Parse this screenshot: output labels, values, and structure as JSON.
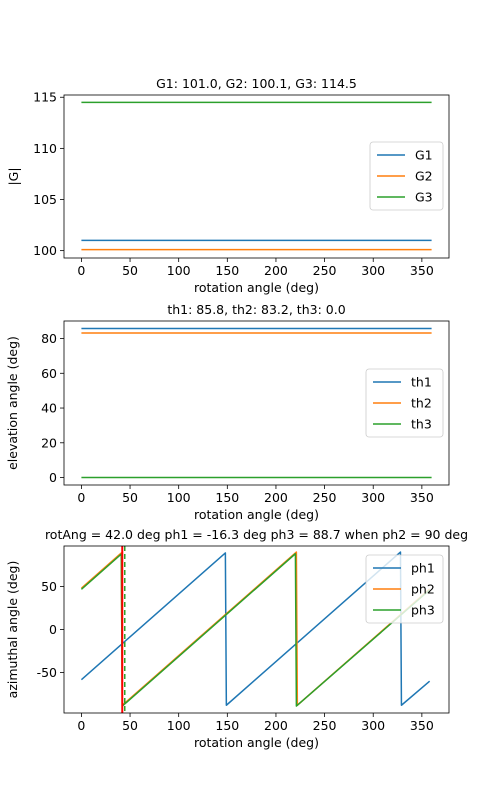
{
  "chart_data": [
    {
      "type": "line",
      "title": "G1: 101.0, G2: 100.1, G3: 114.5",
      "xlabel": "rotation angle (deg)",
      "ylabel": "|G|",
      "xlim": [
        -17.9,
        377.9
      ],
      "ylim": [
        99.28,
        115.22
      ],
      "xticks": [
        0,
        50,
        100,
        150,
        200,
        250,
        300,
        350
      ],
      "yticks": [
        100,
        105,
        110,
        115
      ],
      "legend": "center-right",
      "series": [
        {
          "name": "G1",
          "color": "#1f77b4",
          "x": [
            0,
            360
          ],
          "y": [
            101.0,
            101.0
          ]
        },
        {
          "name": "G2",
          "color": "#ff7f0e",
          "x": [
            0,
            360
          ],
          "y": [
            100.1,
            100.1
          ]
        },
        {
          "name": "G3",
          "color": "#2ca02c",
          "x": [
            0,
            360
          ],
          "y": [
            114.5,
            114.5
          ]
        }
      ]
    },
    {
      "type": "line",
      "title": "th1: 85.8, th2: 83.2, th3: 0.0",
      "xlabel": "rotation angle (deg)",
      "ylabel": "elevation angle (deg)",
      "xlim": [
        -17.9,
        377.9
      ],
      "ylim": [
        -4.29,
        90.09
      ],
      "xticks": [
        0,
        50,
        100,
        150,
        200,
        250,
        300,
        350
      ],
      "yticks": [
        0,
        20,
        40,
        60,
        80
      ],
      "legend": "center-right",
      "series": [
        {
          "name": "th1",
          "color": "#1f77b4",
          "x": [
            0,
            360
          ],
          "y": [
            85.8,
            85.8
          ]
        },
        {
          "name": "th2",
          "color": "#ff7f0e",
          "x": [
            0,
            360
          ],
          "y": [
            83.2,
            83.2
          ]
        },
        {
          "name": "th3",
          "color": "#2ca02c",
          "x": [
            0,
            360
          ],
          "y": [
            0.0,
            0.0
          ]
        }
      ]
    },
    {
      "type": "line",
      "title": "rotAng = 42.0 deg ph1 = -16.3 deg ph3 = 88.7 when ph2 = 90 deg",
      "xlabel": "rotation angle (deg)",
      "ylabel": "azimuthal angle (deg)",
      "xlim": [
        -17.9,
        377.9
      ],
      "ylim": [
        -97,
        97
      ],
      "xticks": [
        0,
        50,
        100,
        150,
        200,
        250,
        300,
        350
      ],
      "yticks": [
        -50,
        0,
        50
      ],
      "legend": "upper-right",
      "vline": {
        "x": 42.0,
        "color": "#ff0000"
      },
      "series": [
        {
          "name": "ph1",
          "color": "#1f77b4",
          "x": [
            0,
            148,
            149,
            328,
            329,
            358
          ],
          "y": [
            -58.3,
            89.0,
            -88.0,
            90.0,
            -88.0,
            -60.0
          ]
        },
        {
          "name": "ph2",
          "color": "#ff7f0e",
          "x": [
            0,
            41,
            42,
            221,
            222,
            358
          ],
          "y": [
            48.0,
            89.0,
            -88.0,
            90.0,
            -88.0,
            47.0
          ]
        },
        {
          "name": "ph3",
          "color": "#2ca02c",
          "x": [
            0,
            41,
            42,
            220,
            221,
            358
          ],
          "y": [
            46.7,
            87.7,
            -89.0,
            88.0,
            -89.0,
            46.0
          ]
        }
      ]
    }
  ]
}
